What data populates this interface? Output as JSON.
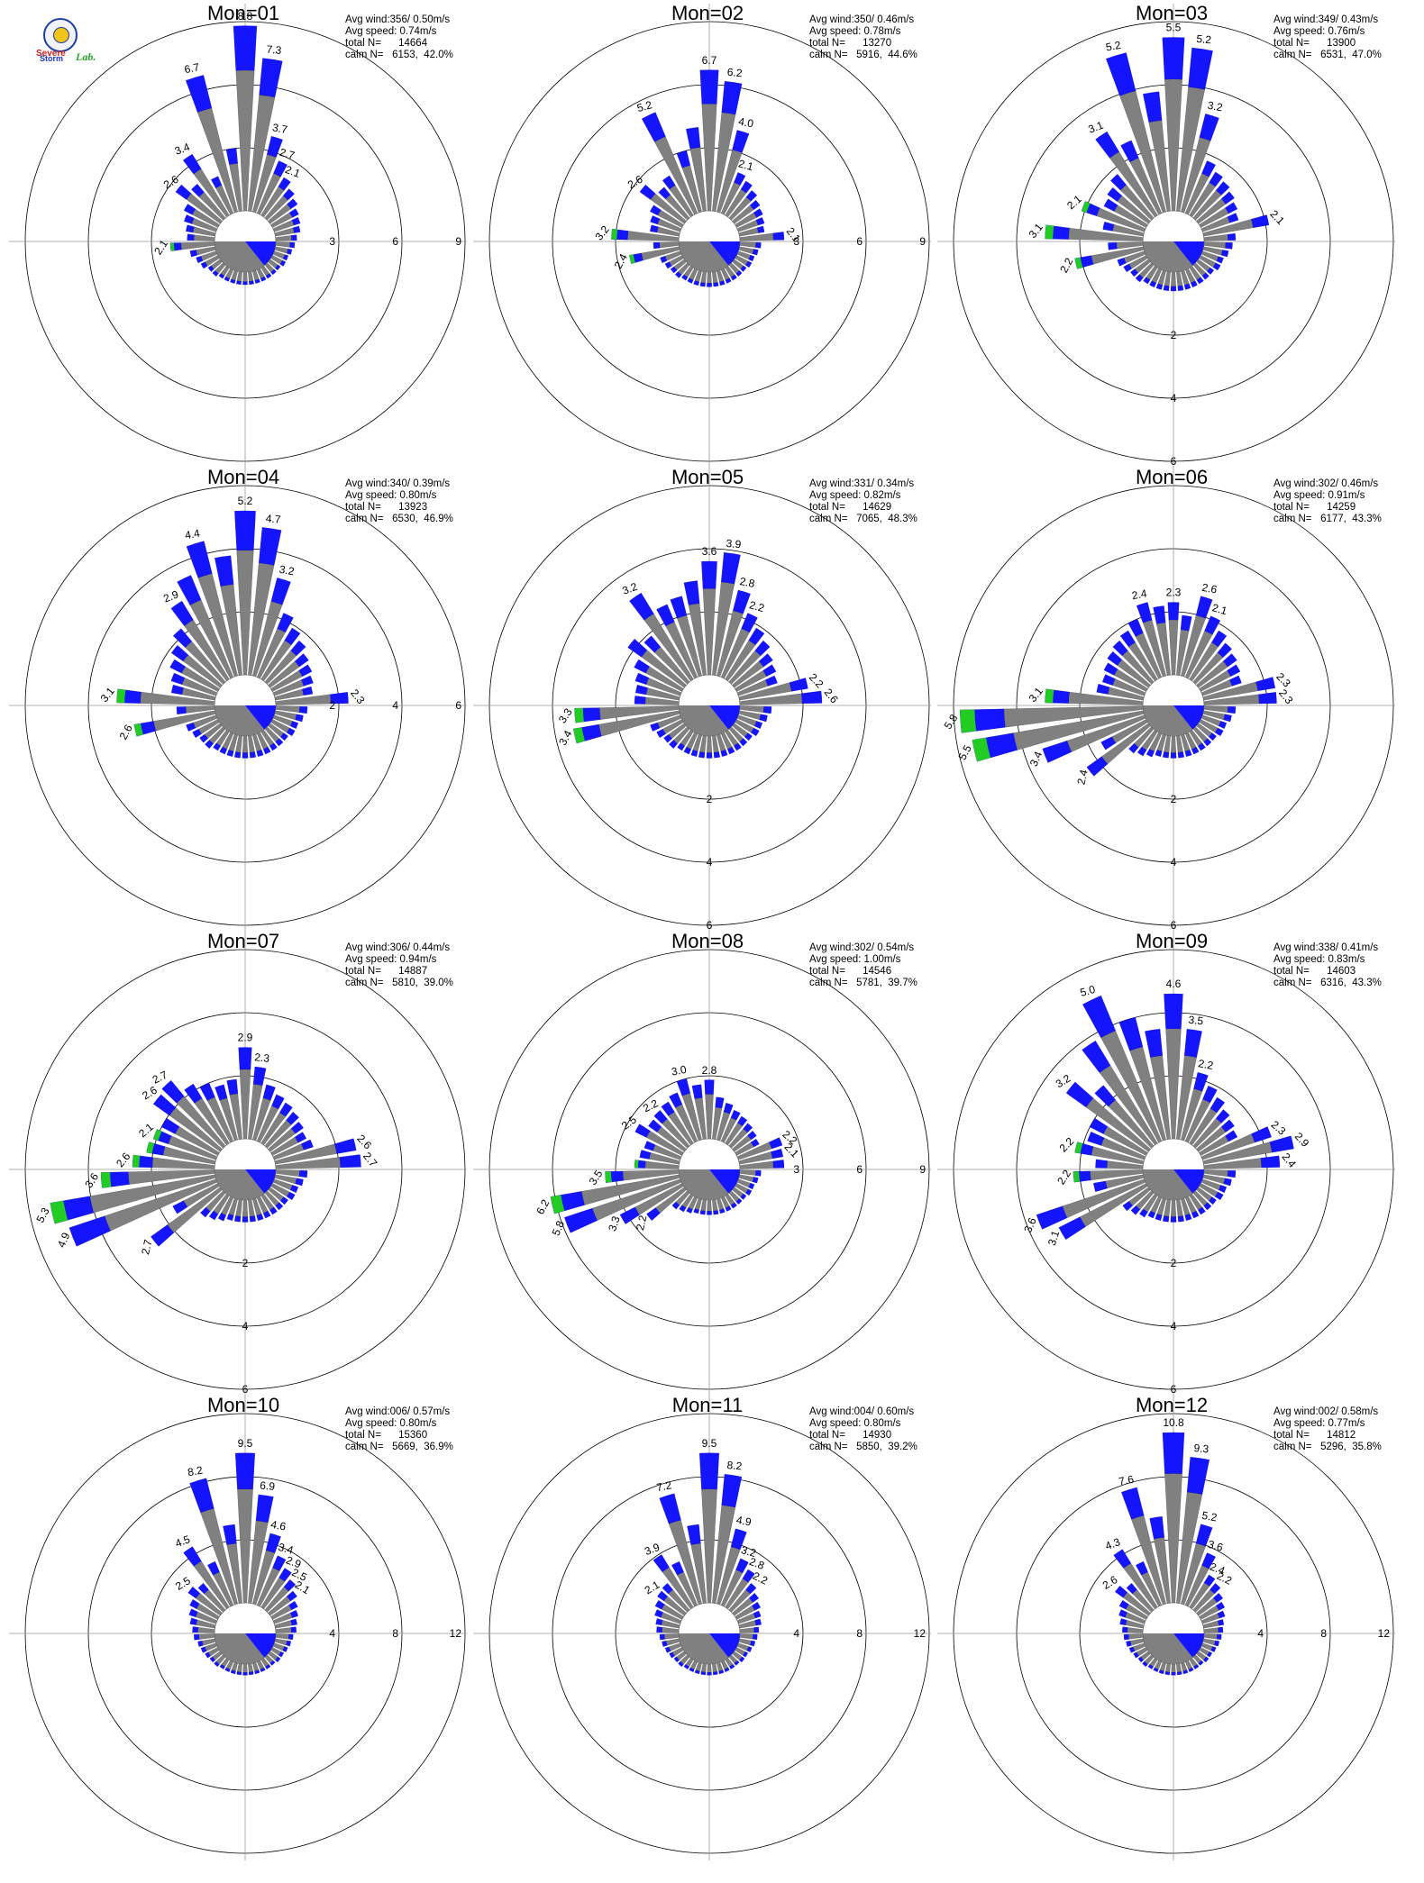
{
  "logo": {
    "brand": "Severe Storm Lab.",
    "line1": "Severe",
    "line2": "Storm",
    "line3": "Lab."
  },
  "colors": {
    "calm": "#808080",
    "low": "#808080",
    "mid": "#1414ff",
    "high": "#22cc22",
    "extreme": "#ff3300",
    "ring": "#000000"
  },
  "chart_data": [
    {
      "type": "windrose",
      "title": "Mon=01",
      "stats": [
        "Avg wind:356/ 0.50m/s",
        "Avg speed: 0.74m/s",
        "total N=      14664",
        "calm N=   6153,  42.0%"
      ],
      "rings": [
        3,
        6,
        9
      ],
      "ring_label_side": "right",
      "labels": [
        "8.8",
        "7.3",
        "3.7",
        "2.7",
        "2.1",
        "2.1",
        "2.6",
        "3.4",
        "6.7"
      ],
      "sectors": [
        8.8,
        7.3,
        3.7,
        2.7,
        2.1,
        1.8,
        1.6,
        1.4,
        1.3,
        1.2,
        1.0,
        0.9,
        0.8,
        0.7,
        0.7,
        0.6,
        0.6,
        0.6,
        0.6,
        0.6,
        0.6,
        0.6,
        0.6,
        0.6,
        0.6,
        0.6,
        0.7,
        0.7,
        0.9,
        1.0,
        1.2,
        2.1,
        1.3,
        1.4,
        1.6,
        1.8,
        2.6,
        2.1,
        3.4,
        1.9,
        6.7,
        3.0
      ]
    },
    {
      "type": "windrose",
      "title": "Mon=02",
      "stats": [
        "Avg wind:350/ 0.46m/s",
        "Avg speed: 0.78m/s",
        "total N=      13270",
        "calm N=   5916,  44.6%"
      ],
      "rings": [
        3,
        6,
        9
      ],
      "ring_label_side": "right",
      "labels": [
        "6.7",
        "6.2",
        "4.0",
        "2.1",
        "2.1",
        "3.2",
        "2.4",
        "2.6",
        "5.2"
      ],
      "sectors": [
        6.7,
        6.2,
        4.0,
        2.1,
        1.9,
        1.7,
        1.5,
        1.4,
        1.3,
        1.2,
        2.1,
        1.0,
        0.9,
        0.8,
        0.8,
        0.7,
        0.7,
        0.7,
        0.7,
        0.7,
        0.7,
        0.7,
        0.7,
        0.7,
        0.7,
        0.7,
        0.8,
        0.8,
        0.9,
        1.0,
        2.4,
        1.2,
        3.2,
        1.4,
        1.5,
        1.7,
        2.6,
        1.9,
        2.2,
        5.2,
        3.0,
        4.0
      ]
    },
    {
      "type": "windrose",
      "title": "Mon=03",
      "stats": [
        "Avg wind:349/ 0.43m/s",
        "Avg speed: 0.76m/s",
        "total N=      13900",
        "calm N=   6531,  47.0%"
      ],
      "rings": [
        2,
        4,
        6
      ],
      "ring_label_side": "bottom",
      "labels": [
        "5.5",
        "5.2",
        "3.2",
        "2.1",
        "2.2",
        "3.1",
        "2.1",
        "3.1",
        "5.2"
      ],
      "sectors": [
        5.5,
        5.2,
        3.2,
        1.8,
        1.6,
        1.5,
        1.4,
        1.3,
        1.2,
        2.1,
        1.0,
        0.9,
        0.8,
        0.7,
        0.7,
        0.6,
        0.6,
        0.6,
        0.6,
        0.6,
        0.6,
        0.6,
        0.6,
        0.6,
        0.6,
        0.6,
        0.7,
        0.7,
        0.8,
        0.9,
        2.2,
        1.1,
        3.1,
        1.3,
        2.1,
        1.5,
        1.6,
        1.8,
        3.1,
        2.5,
        5.2,
        3.8
      ]
    },
    {
      "type": "windrose",
      "title": "Mon=04",
      "stats": [
        "Avg wind:340/ 0.39m/s",
        "Avg speed: 0.80m/s",
        "total N=      13923",
        "calm N=   6530,  46.9%"
      ],
      "rings": [
        2,
        4,
        6
      ],
      "ring_label_side": "right",
      "labels": [
        "5.2",
        "4.7",
        "3.2",
        "2.3",
        "2.6",
        "3.1",
        "2.9",
        "4.4"
      ],
      "sectors": [
        5.2,
        4.7,
        3.2,
        2.2,
        1.9,
        1.7,
        1.5,
        1.4,
        1.3,
        1.2,
        2.3,
        1.0,
        0.9,
        0.8,
        0.8,
        0.7,
        0.7,
        0.7,
        0.7,
        0.7,
        0.7,
        0.7,
        0.7,
        0.7,
        0.7,
        0.7,
        0.8,
        0.8,
        0.9,
        1.0,
        2.6,
        1.2,
        3.1,
        1.4,
        1.5,
        1.7,
        1.9,
        2.2,
        2.9,
        3.5,
        4.4,
        3.8
      ]
    },
    {
      "type": "windrose",
      "title": "Mon=05",
      "stats": [
        "Avg wind:331/ 0.34m/s",
        "Avg speed: 0.82m/s",
        "total N=      14629",
        "calm N=   7065,  48.3%"
      ],
      "rings": [
        2,
        4,
        6
      ],
      "ring_label_side": "bottom",
      "labels": [
        "3.9",
        "2.8",
        "2.2",
        "2.6",
        "3.4",
        "3.3",
        "2.2",
        "3.2",
        "3.6"
      ],
      "sectors": [
        3.6,
        3.9,
        2.8,
        2.2,
        1.9,
        1.7,
        1.5,
        1.4,
        1.3,
        2.2,
        2.6,
        1.0,
        0.9,
        0.8,
        0.8,
        0.7,
        0.7,
        0.7,
        0.7,
        0.7,
        0.7,
        0.7,
        0.7,
        0.7,
        0.7,
        0.7,
        0.8,
        0.8,
        0.9,
        1.0,
        3.4,
        3.3,
        1.4,
        1.4,
        1.5,
        1.7,
        2.2,
        1.9,
        3.2,
        2.5,
        2.6,
        3.0
      ]
    },
    {
      "type": "windrose",
      "title": "Mon=06",
      "stats": [
        "Avg wind:302/ 0.46m/s",
        "Avg speed: 0.91m/s",
        "total N=      14259",
        "calm N=   6177,  43.3%"
      ],
      "rings": [
        2,
        4,
        6
      ],
      "ring_label_side": "bottom",
      "labels": [
        "2.3",
        "2.6",
        "2.1",
        "2.3",
        "2.3",
        "5.8",
        "5.5",
        "3.4",
        "2.4",
        "3.1",
        "2.4"
      ],
      "sectors": [
        2.3,
        1.9,
        2.6,
        2.1,
        1.8,
        1.6,
        1.5,
        1.4,
        1.3,
        2.3,
        2.3,
        1.0,
        0.9,
        0.8,
        0.8,
        0.7,
        0.7,
        0.7,
        0.7,
        0.7,
        0.7,
        0.7,
        0.7,
        0.7,
        0.8,
        0.9,
        1.0,
        2.4,
        1.6,
        3.4,
        5.5,
        5.8,
        3.1,
        1.5,
        1.4,
        1.5,
        1.6,
        1.7,
        1.8,
        2.0,
        2.4,
        2.2
      ]
    },
    {
      "type": "windrose",
      "title": "Mon=07",
      "stats": [
        "Avg wind:306/ 0.44m/s",
        "Avg speed: 0.94m/s",
        "total N=      14887",
        "calm N=   5810,  39.0%"
      ],
      "rings": [
        2,
        4,
        6
      ],
      "ring_label_side": "bottom",
      "labels": [
        "2.9",
        "2.3",
        "2.6",
        "2.7",
        "5.3",
        "4.9",
        "2.7",
        "3.6",
        "2.6",
        "2.1",
        "2.6",
        "2.7"
      ],
      "sectors": [
        2.9,
        2.3,
        1.8,
        1.6,
        1.5,
        1.4,
        1.3,
        1.2,
        1.3,
        2.6,
        2.7,
        1.0,
        0.9,
        0.8,
        0.8,
        0.7,
        0.7,
        0.7,
        0.7,
        0.7,
        0.7,
        0.7,
        0.7,
        0.7,
        0.8,
        0.9,
        1.0,
        2.7,
        1.6,
        4.9,
        5.3,
        3.6,
        2.6,
        2.2,
        2.1,
        2.0,
        2.6,
        2.7,
        2.2,
        2.0,
        1.8,
        1.9
      ]
    },
    {
      "type": "windrose",
      "title": "Mon=08",
      "stats": [
        "Avg wind:302/ 0.54m/s",
        "Avg speed: 1.00m/s",
        "total N=      14546",
        "calm N=   5781,  39.7%"
      ],
      "rings": [
        3,
        6,
        9
      ],
      "ring_label_side": "right",
      "labels": [
        "2.8",
        "2.2",
        "2.1",
        "6.2",
        "5.8",
        "3.3",
        "2.2",
        "3.5",
        "2.1",
        "2.5",
        "3.0"
      ],
      "sectors": [
        2.8,
        2.0,
        1.8,
        1.6,
        1.5,
        1.4,
        1.3,
        1.2,
        2.2,
        2.1,
        2.1,
        1.0,
        0.9,
        0.8,
        0.8,
        0.7,
        0.7,
        0.7,
        0.7,
        0.7,
        0.7,
        0.7,
        0.7,
        0.7,
        0.8,
        0.9,
        1.0,
        2.2,
        3.3,
        5.8,
        6.2,
        3.5,
        2.1,
        1.9,
        1.8,
        2.5,
        2.1,
        2.2,
        2.3,
        2.5,
        3.0,
        2.6
      ]
    },
    {
      "type": "windrose",
      "title": "Mon=09",
      "stats": [
        "Avg wind:338/ 0.41m/s",
        "Avg speed: 0.83m/s",
        "total N=      14603",
        "calm N=   6316,  43.3%"
      ],
      "rings": [
        2,
        4,
        6
      ],
      "ring_label_side": "bottom",
      "labels": [
        "4.6",
        "3.5",
        "2.2",
        "2.3",
        "2.9",
        "2.4",
        "3.1",
        "3.6",
        "2.2",
        "2.2",
        "3.2",
        "5.0"
      ],
      "sectors": [
        4.6,
        3.5,
        2.2,
        1.9,
        1.7,
        1.5,
        1.4,
        1.3,
        2.3,
        2.9,
        2.4,
        1.0,
        0.9,
        0.8,
        0.8,
        0.7,
        0.7,
        0.7,
        0.7,
        0.7,
        0.7,
        0.7,
        0.7,
        0.7,
        0.7,
        0.8,
        0.9,
        1.0,
        3.1,
        3.6,
        1.6,
        2.2,
        1.5,
        2.2,
        1.9,
        2.0,
        3.2,
        2.5,
        3.8,
        5.0,
        4.0,
        3.5
      ]
    },
    {
      "type": "windrose",
      "title": "Mon=10",
      "stats": [
        "Avg wind:006/ 0.57m/s",
        "Avg speed: 0.80m/s",
        "total N=      15360",
        "calm N=   5669,  36.9%"
      ],
      "rings": [
        4,
        8,
        12
      ],
      "ring_label_side": "right",
      "labels": [
        "9.5",
        "6.9",
        "4.6",
        "3.4",
        "2.9",
        "2.5",
        "2.1",
        "2.5",
        "4.5",
        "8.2"
      ],
      "sectors": [
        9.5,
        6.9,
        4.6,
        3.4,
        2.9,
        2.5,
        2.1,
        1.8,
        1.6,
        1.4,
        1.3,
        1.1,
        1.0,
        0.9,
        0.8,
        0.8,
        0.7,
        0.7,
        0.7,
        0.7,
        0.7,
        0.7,
        0.7,
        0.7,
        0.7,
        0.7,
        0.8,
        0.8,
        0.9,
        1.0,
        1.1,
        1.3,
        1.4,
        1.6,
        1.8,
        2.0,
        2.5,
        2.2,
        4.5,
        3.0,
        8.2,
        5.0
      ]
    },
    {
      "type": "windrose",
      "title": "Mon=11",
      "stats": [
        "Avg wind:004/ 0.60m/s",
        "Avg speed: 0.80m/s",
        "total N=      14930",
        "calm N=   5850,  39.2%"
      ],
      "rings": [
        4,
        8,
        12
      ],
      "ring_label_side": "right",
      "labels": [
        "9.5",
        "8.2",
        "4.9",
        "3.2",
        "2.8",
        "2.2",
        "2.1",
        "3.9",
        "7.2"
      ],
      "sectors": [
        9.5,
        8.2,
        4.9,
        3.2,
        2.8,
        2.2,
        1.9,
        1.7,
        1.5,
        1.4,
        1.2,
        1.1,
        1.0,
        0.9,
        0.8,
        0.8,
        0.7,
        0.7,
        0.7,
        0.7,
        0.7,
        0.7,
        0.7,
        0.7,
        0.7,
        0.7,
        0.8,
        0.8,
        0.9,
        1.0,
        1.1,
        1.2,
        1.4,
        1.5,
        1.7,
        1.9,
        2.1,
        2.2,
        3.9,
        3.0,
        7.2,
        5.0
      ]
    },
    {
      "type": "windrose",
      "title": "Mon=12",
      "stats": [
        "Avg wind:002/ 0.58m/s",
        "Avg speed: 0.77m/s",
        "total N=      14812",
        "calm N=   5296,  35.8%"
      ],
      "rings": [
        4,
        8,
        12
      ],
      "ring_label_side": "right",
      "labels": [
        "10.8",
        "9.3",
        "5.2",
        "3.6",
        "2.4",
        "2.2",
        "2.6",
        "4.3",
        "7.6"
      ],
      "sectors": [
        10.8,
        9.3,
        5.2,
        3.6,
        2.4,
        2.2,
        1.9,
        1.7,
        1.5,
        1.3,
        1.2,
        1.1,
        1.0,
        0.9,
        0.8,
        0.8,
        0.7,
        0.7,
        0.7,
        0.7,
        0.7,
        0.7,
        0.7,
        0.7,
        0.7,
        0.7,
        0.8,
        0.8,
        0.9,
        1.0,
        1.1,
        1.2,
        1.3,
        1.5,
        1.7,
        1.9,
        2.6,
        2.2,
        4.3,
        3.0,
        7.6,
        5.5
      ]
    }
  ]
}
